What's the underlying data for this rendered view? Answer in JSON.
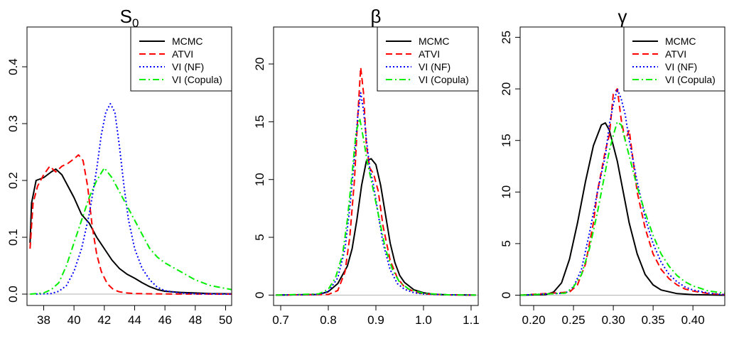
{
  "chart_data": [
    {
      "type": "line",
      "title": "S",
      "title_sub": "0",
      "xlim": [
        36.9,
        50.4
      ],
      "ylim": [
        -0.02,
        0.47
      ],
      "xticks": [
        38,
        40,
        42,
        44,
        46,
        48,
        50
      ],
      "xtick_labels": [
        "38",
        "40",
        "42",
        "44",
        "46",
        "48",
        "50"
      ],
      "yticks": [
        0.0,
        0.1,
        0.2,
        0.3,
        0.4
      ],
      "ytick_labels": [
        "0.0",
        "0.1",
        "0.2",
        "0.3",
        "0.4"
      ],
      "legend": "top-right",
      "series": [
        {
          "name": "MCMC",
          "color": "#000000",
          "dash": "solid",
          "x": [
            37.1,
            37.2,
            37.5,
            38.0,
            38.5,
            38.8,
            39.2,
            39.6,
            40.0,
            40.5,
            41.0,
            41.5,
            42.0,
            42.5,
            43.0,
            43.5,
            44.0,
            44.5,
            45.0,
            45.5,
            46.0,
            47.0,
            48.0,
            49.0,
            50.4
          ],
          "y": [
            0.09,
            0.16,
            0.2,
            0.205,
            0.215,
            0.22,
            0.21,
            0.19,
            0.17,
            0.14,
            0.125,
            0.1,
            0.08,
            0.06,
            0.045,
            0.035,
            0.028,
            0.02,
            0.013,
            0.008,
            0.005,
            0.003,
            0.002,
            0.001,
            0.0005
          ]
        },
        {
          "name": "ATVI",
          "color": "#ff0000",
          "dash": "dashed",
          "x": [
            37.1,
            37.3,
            37.6,
            38.0,
            38.4,
            38.8,
            39.2,
            39.6,
            40.0,
            40.3,
            40.6,
            40.9,
            41.2,
            41.5,
            41.8,
            42.2,
            42.6,
            43.0,
            43.5,
            44.0,
            45.0,
            46.0,
            48.0,
            50.4
          ],
          "y": [
            0.08,
            0.16,
            0.19,
            0.21,
            0.225,
            0.215,
            0.225,
            0.23,
            0.238,
            0.245,
            0.235,
            0.19,
            0.12,
            0.07,
            0.04,
            0.018,
            0.008,
            0.004,
            0.002,
            0.001,
            0.0005,
            0.0003,
            0.0001,
            0.0
          ]
        },
        {
          "name": "VI (NF)",
          "color": "#0000ff",
          "dash": "dotted",
          "x": [
            37.5,
            38.5,
            39.0,
            39.5,
            40.0,
            40.5,
            41.0,
            41.5,
            41.8,
            42.1,
            42.4,
            42.7,
            43.0,
            43.3,
            43.6,
            44.0,
            44.5,
            45.0,
            45.5,
            46.0,
            47.0,
            48.0,
            50.4
          ],
          "y": [
            0.0,
            0.001,
            0.005,
            0.015,
            0.04,
            0.08,
            0.14,
            0.22,
            0.28,
            0.32,
            0.335,
            0.32,
            0.26,
            0.19,
            0.13,
            0.08,
            0.045,
            0.025,
            0.012,
            0.006,
            0.002,
            0.0005,
            0.0
          ]
        },
        {
          "name": "VI (Copula)",
          "color": "#00ee00",
          "dash": "dashdot",
          "x": [
            37.1,
            38.0,
            38.5,
            39.0,
            39.5,
            40.0,
            40.5,
            41.0,
            41.5,
            42.0,
            42.5,
            43.0,
            43.5,
            44.0,
            44.5,
            45.0,
            45.5,
            46.0,
            47.0,
            48.0,
            49.0,
            50.0,
            50.4
          ],
          "y": [
            0.0,
            0.002,
            0.008,
            0.02,
            0.05,
            0.09,
            0.13,
            0.17,
            0.2,
            0.222,
            0.205,
            0.18,
            0.155,
            0.13,
            0.105,
            0.08,
            0.065,
            0.055,
            0.04,
            0.025,
            0.015,
            0.01,
            0.008
          ]
        }
      ]
    },
    {
      "type": "line",
      "title": "β",
      "xlim": [
        0.685,
        1.115
      ],
      "ylim": [
        -0.9,
        23.2
      ],
      "xticks": [
        0.7,
        0.8,
        0.9,
        1.0,
        1.1
      ],
      "xtick_labels": [
        "0.7",
        "0.8",
        "0.9",
        "1.0",
        "1.1"
      ],
      "yticks": [
        0,
        5,
        10,
        15,
        20
      ],
      "ytick_labels": [
        "0",
        "5",
        "10",
        "15",
        "20"
      ],
      "legend": "top-right",
      "series": [
        {
          "name": "MCMC",
          "color": "#000000",
          "dash": "solid",
          "x": [
            0.69,
            0.78,
            0.8,
            0.82,
            0.84,
            0.85,
            0.86,
            0.87,
            0.88,
            0.89,
            0.9,
            0.91,
            0.92,
            0.93,
            0.94,
            0.95,
            0.96,
            0.98,
            1.0,
            1.02,
            1.05,
            1.11
          ],
          "y": [
            0.0,
            0.05,
            0.3,
            1.0,
            2.5,
            4.0,
            6.5,
            9.5,
            11.6,
            11.8,
            11.3,
            9.5,
            7.0,
            4.5,
            2.8,
            1.7,
            1.1,
            0.45,
            0.2,
            0.08,
            0.02,
            0.0
          ]
        },
        {
          "name": "ATVI",
          "color": "#ff0000",
          "dash": "dashed",
          "x": [
            0.69,
            0.8,
            0.82,
            0.835,
            0.845,
            0.855,
            0.862,
            0.868,
            0.874,
            0.88,
            0.887,
            0.895,
            0.905,
            0.915,
            0.93,
            0.945,
            0.96,
            0.98,
            1.0,
            1.05,
            1.11
          ],
          "y": [
            0.0,
            0.05,
            0.4,
            2.0,
            5.0,
            10.0,
            15.5,
            19.7,
            17.5,
            13.0,
            11.0,
            10.5,
            9.0,
            6.0,
            3.0,
            1.5,
            0.7,
            0.3,
            0.1,
            0.02,
            0.0
          ]
        },
        {
          "name": "VI (NF)",
          "color": "#0000ff",
          "dash": "dotted",
          "x": [
            0.69,
            0.78,
            0.8,
            0.82,
            0.835,
            0.845,
            0.855,
            0.862,
            0.868,
            0.874,
            0.88,
            0.887,
            0.895,
            0.905,
            0.915,
            0.93,
            0.945,
            0.96,
            0.98,
            1.0,
            1.05,
            1.11
          ],
          "y": [
            0.0,
            0.05,
            0.3,
            1.5,
            4.0,
            7.5,
            12.0,
            15.5,
            17.5,
            16.0,
            13.5,
            11.0,
            9.5,
            7.0,
            4.5,
            2.2,
            1.0,
            0.5,
            0.2,
            0.1,
            0.02,
            0.0
          ]
        },
        {
          "name": "VI (Copula)",
          "color": "#00ee00",
          "dash": "dashdot",
          "x": [
            0.69,
            0.78,
            0.8,
            0.815,
            0.83,
            0.84,
            0.85,
            0.858,
            0.866,
            0.874,
            0.882,
            0.89,
            0.9,
            0.91,
            0.92,
            0.935,
            0.95,
            0.97,
            1.0,
            1.05,
            1.11
          ],
          "y": [
            0.0,
            0.1,
            0.5,
            1.5,
            3.5,
            6.5,
            10.5,
            14.0,
            15.3,
            13.5,
            11.5,
            10.0,
            8.0,
            6.0,
            4.0,
            2.2,
            1.1,
            0.5,
            0.15,
            0.03,
            0.0
          ]
        }
      ]
    },
    {
      "type": "line",
      "title": "γ",
      "xlim": [
        0.183,
        0.44
      ],
      "ylim": [
        -1.0,
        26.0
      ],
      "xticks": [
        0.2,
        0.25,
        0.3,
        0.35,
        0.4
      ],
      "xtick_labels": [
        "0.20",
        "0.25",
        "0.30",
        "0.35",
        "0.40"
      ],
      "yticks": [
        0,
        5,
        10,
        15,
        20,
        25
      ],
      "ytick_labels": [
        "0",
        "5",
        "10",
        "15",
        "20",
        "25"
      ],
      "legend": "top-right",
      "series": [
        {
          "name": "MCMC",
          "color": "#000000",
          "dash": "solid",
          "x": [
            0.183,
            0.215,
            0.225,
            0.235,
            0.245,
            0.255,
            0.265,
            0.275,
            0.285,
            0.29,
            0.295,
            0.3,
            0.305,
            0.31,
            0.315,
            0.32,
            0.33,
            0.34,
            0.35,
            0.36,
            0.38,
            0.4,
            0.44
          ],
          "y": [
            0.0,
            0.05,
            0.3,
            1.2,
            3.5,
            7.0,
            11.0,
            14.5,
            16.5,
            16.7,
            16.0,
            14.5,
            13.0,
            11.0,
            9.0,
            7.0,
            4.0,
            2.0,
            1.0,
            0.5,
            0.15,
            0.05,
            0.0
          ]
        },
        {
          "name": "ATVI",
          "color": "#ff0000",
          "dash": "dashed",
          "x": [
            0.183,
            0.245,
            0.255,
            0.265,
            0.275,
            0.28,
            0.285,
            0.29,
            0.295,
            0.3,
            0.305,
            0.31,
            0.315,
            0.32,
            0.325,
            0.33,
            0.34,
            0.35,
            0.36,
            0.37,
            0.38,
            0.39,
            0.4,
            0.42,
            0.44
          ],
          "y": [
            0.0,
            0.3,
            1.0,
            3.0,
            7.0,
            10.0,
            12.0,
            14.0,
            15.5,
            19.5,
            20.0,
            17.0,
            15.0,
            16.0,
            13.0,
            10.0,
            6.5,
            4.0,
            2.5,
            1.6,
            1.0,
            0.6,
            0.4,
            0.15,
            0.05
          ]
        },
        {
          "name": "VI (NF)",
          "color": "#0000ff",
          "dash": "dotted",
          "x": [
            0.183,
            0.24,
            0.25,
            0.26,
            0.27,
            0.28,
            0.29,
            0.295,
            0.3,
            0.305,
            0.31,
            0.315,
            0.32,
            0.33,
            0.34,
            0.35,
            0.36,
            0.37,
            0.38,
            0.39,
            0.4,
            0.42,
            0.44
          ],
          "y": [
            0.0,
            0.2,
            0.8,
            2.5,
            6.0,
            10.0,
            13.5,
            16.5,
            18.5,
            20.0,
            19.0,
            17.5,
            15.0,
            11.0,
            7.5,
            5.0,
            3.2,
            2.0,
            1.3,
            0.8,
            0.5,
            0.2,
            0.05
          ]
        },
        {
          "name": "VI (Copula)",
          "color": "#00ee00",
          "dash": "dashdot",
          "x": [
            0.183,
            0.24,
            0.25,
            0.26,
            0.27,
            0.28,
            0.29,
            0.295,
            0.3,
            0.305,
            0.31,
            0.315,
            0.32,
            0.33,
            0.34,
            0.35,
            0.36,
            0.37,
            0.38,
            0.39,
            0.4,
            0.42,
            0.44
          ],
          "y": [
            0.0,
            0.2,
            0.8,
            2.0,
            4.5,
            8.0,
            12.0,
            14.0,
            15.5,
            16.8,
            16.5,
            15.0,
            13.5,
            10.5,
            8.0,
            5.8,
            4.0,
            2.8,
            1.9,
            1.3,
            0.9,
            0.4,
            0.2
          ]
        }
      ]
    }
  ]
}
